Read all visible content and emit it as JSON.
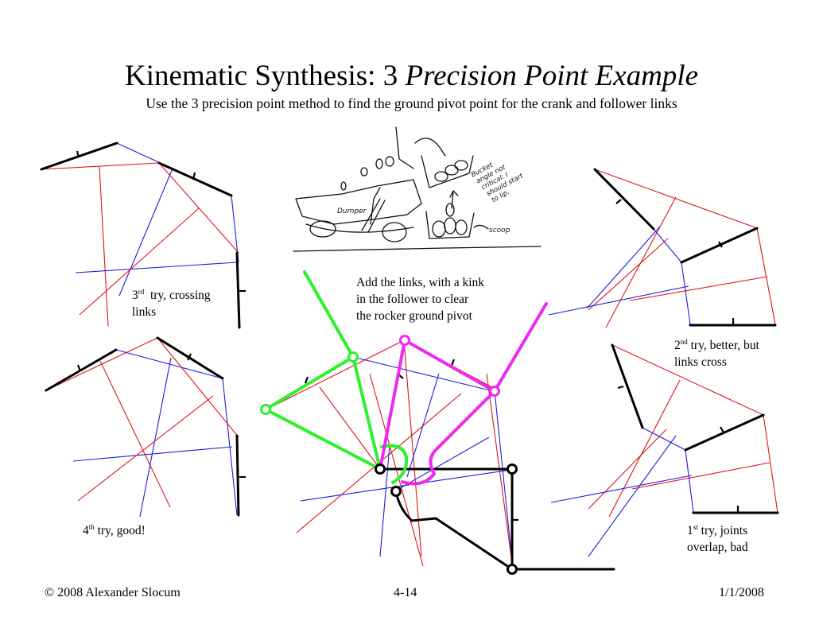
{
  "title": {
    "main": "Kinematic Synthesis: 3 ",
    "italic": "Precision Point Example"
  },
  "subtitle": "Use the 3 precision point method to find the ground pivot point for the crank and follower links",
  "notes": {
    "third_try": {
      "ordinal": "3",
      "sup": "rd",
      "line1": "  try, crossing",
      "line2": "links"
    },
    "add_links": {
      "line1": "Add the links, with a kink",
      "line2": "in the follower to clear",
      "line3": "the rocker ground pivot"
    },
    "second_try": {
      "ordinal": "2",
      "sup": "nd",
      "line1": " try, better, but",
      "line2": "links cross"
    },
    "fourth_try": {
      "ordinal": "4",
      "sup": "th",
      "line1": " try, good!"
    },
    "first_try": {
      "ordinal": "1",
      "sup": "st",
      "line1": " try, joints",
      "line2": "overlap, bad"
    }
  },
  "sketch_labels": {
    "dumper": "Dumper",
    "scoop": "scoop",
    "bucket_note": [
      "Bucket",
      "angle not",
      "critical: I",
      "should start",
      "to lip."
    ]
  },
  "footer": {
    "copyright": "© 2008 Alexander Slocum",
    "page": "4-14",
    "date": "1/1/2008"
  },
  "colors": {
    "construction_red": "#e0141c",
    "construction_blue": "#1e1edc",
    "crank_link": "#2cf22c",
    "follower_link": "#ee2aee",
    "body": "#000000"
  }
}
